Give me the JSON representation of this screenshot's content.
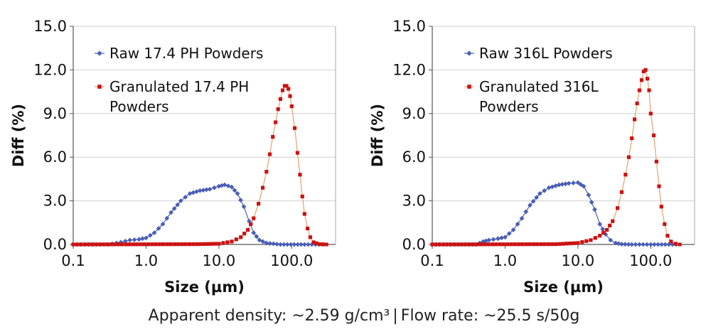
{
  "caption": {
    "density": "Apparent density: ~2.59 g/cm³",
    "separator": "|",
    "flow": "Flow rate: ~25.5 s/50g"
  },
  "colors": {
    "raw": "#4a5fb5",
    "granulated": "#cc1111",
    "granulated_line": "#e8a070",
    "grid": "#d0d0d0",
    "axis": "#555555"
  },
  "chart_data": [
    {
      "type": "line",
      "xlabel": "Size (µm)",
      "ylabel": "Diff (%)",
      "xscale": "log",
      "xlim": [
        0.1,
        400
      ],
      "ylim": [
        0,
        15
      ],
      "xticks": [
        0.1,
        1.0,
        10.0,
        100.0
      ],
      "xtick_labels": [
        "0.1",
        "1.0",
        "10.0",
        "100.0"
      ],
      "yticks": [
        0,
        3,
        6,
        9,
        12,
        15
      ],
      "ytick_labels": [
        "0.0",
        "3.0",
        "6.0",
        "9.0",
        "12.0",
        "15.0"
      ],
      "grid": "horizontal",
      "legend": "top-left",
      "series": [
        {
          "name": "Raw 17.4 PH Powders",
          "marker": "diamond",
          "x": [
            0.1,
            0.3,
            0.45,
            0.6,
            0.8,
            1.0,
            1.3,
            1.7,
            2.2,
            3.0,
            4.0,
            5.5,
            7.5,
            10.0,
            12.0,
            15.0,
            18.0,
            22.0,
            26.0,
            30.0,
            36.0,
            45.0,
            70.0,
            150.0,
            300.0
          ],
          "y": [
            0.0,
            0.0,
            0.15,
            0.3,
            0.35,
            0.45,
            0.8,
            1.4,
            2.2,
            3.0,
            3.5,
            3.7,
            3.8,
            4.0,
            4.1,
            3.95,
            3.5,
            2.6,
            1.6,
            0.8,
            0.3,
            0.1,
            0.0,
            0.0,
            0.0
          ]
        },
        {
          "name": "Granulated 17.4 PH Powders",
          "marker": "square",
          "x": [
            0.1,
            5.0,
            10.0,
            15.0,
            20.0,
            25.0,
            30.0,
            35.0,
            40.0,
            45.0,
            50.0,
            55.0,
            60.0,
            65.0,
            70.0,
            75.0,
            80.0,
            85.0,
            90.0,
            95.0,
            100.0,
            110.0,
            120.0,
            130.0,
            140.0,
            150.0,
            165.0,
            180.0,
            200.0,
            240.0,
            300.0
          ],
          "y": [
            0.0,
            0.02,
            0.05,
            0.2,
            0.5,
            1.0,
            1.8,
            2.8,
            3.9,
            5.0,
            6.2,
            7.4,
            8.4,
            9.3,
            10.0,
            10.6,
            10.9,
            10.9,
            10.7,
            10.2,
            9.5,
            8.0,
            6.3,
            4.8,
            3.3,
            2.1,
            1.1,
            0.5,
            0.15,
            0.02,
            0.0
          ]
        }
      ]
    },
    {
      "type": "line",
      "xlabel": "Size (µm)",
      "ylabel": "Diff (%)",
      "xscale": "log",
      "xlim": [
        0.1,
        400
      ],
      "ylim": [
        0,
        15
      ],
      "xticks": [
        0.1,
        1.0,
        10.0,
        100.0
      ],
      "xtick_labels": [
        "0.1",
        "1.0",
        "10.0",
        "100.0"
      ],
      "yticks": [
        0,
        3,
        6,
        9,
        12,
        15
      ],
      "ytick_labels": [
        "0.0",
        "3.0",
        "6.0",
        "9.0",
        "12.0",
        "15.0"
      ],
      "grid": "horizontal",
      "legend": "top-left",
      "series": [
        {
          "name": "Raw 316L Powders",
          "marker": "diamond",
          "x": [
            0.1,
            0.4,
            0.5,
            0.6,
            0.8,
            1.0,
            1.3,
            1.7,
            2.2,
            3.0,
            4.0,
            5.5,
            7.5,
            10.0,
            12.0,
            14.0,
            17.0,
            20.0,
            24.0,
            28.0,
            33.0,
            40.0,
            55.0,
            100.0,
            250.0
          ],
          "y": [
            0.0,
            0.0,
            0.2,
            0.3,
            0.4,
            0.5,
            1.0,
            1.8,
            2.7,
            3.5,
            3.9,
            4.1,
            4.2,
            4.25,
            4.0,
            3.4,
            2.4,
            1.4,
            0.7,
            0.3,
            0.1,
            0.02,
            0.0,
            0.0,
            0.0
          ]
        },
        {
          "name": "Granulated 316L Powders",
          "marker": "square",
          "x": [
            0.1,
            5.0,
            10.0,
            15.0,
            20.0,
            25.0,
            30.0,
            35.0,
            40.0,
            45.0,
            50.0,
            55.0,
            60.0,
            65.0,
            70.0,
            75.0,
            80.0,
            85.0,
            90.0,
            95.0,
            100.0,
            110.0,
            120.0,
            130.0,
            140.0,
            155.0,
            170.0,
            190.0,
            220.0,
            250.0
          ],
          "y": [
            0.0,
            0.02,
            0.1,
            0.3,
            0.6,
            1.0,
            1.6,
            2.5,
            3.6,
            4.8,
            6.0,
            7.3,
            8.6,
            9.7,
            10.6,
            11.3,
            11.9,
            12.0,
            11.4,
            10.6,
            9.0,
            7.5,
            5.7,
            4.0,
            2.6,
            1.4,
            0.6,
            0.2,
            0.05,
            0.0
          ]
        }
      ]
    }
  ]
}
